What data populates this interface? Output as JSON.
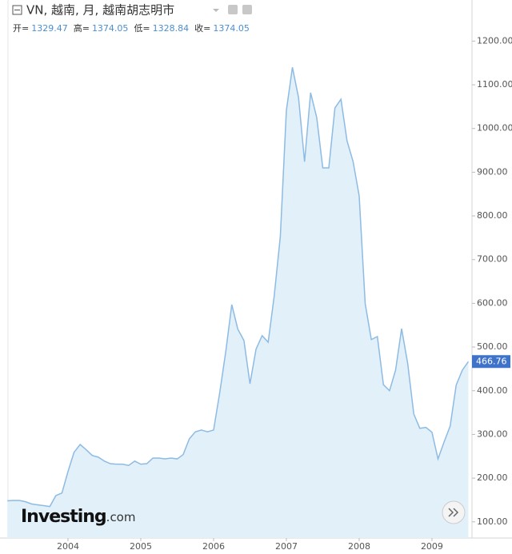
{
  "chart_data": {
    "type": "area",
    "title": "VN, 越南, 月, 越南胡志明市",
    "ohlc": [
      {
        "label": "开=",
        "value": 1329.47
      },
      {
        "label": "高=",
        "value": 1374.05
      },
      {
        "label": "低=",
        "value": 1328.84
      },
      {
        "label": "收=",
        "value": 1374.05
      }
    ],
    "brand": "Investing",
    "brand_suffix": ".com",
    "color": "#8dbbe3",
    "fill": "#e2f0fa",
    "x": [
      2003.167,
      2003.25,
      2003.333,
      2003.417,
      2003.5,
      2003.583,
      2003.667,
      2003.75,
      2003.833,
      2003.917,
      2004,
      2004.083,
      2004.167,
      2004.25,
      2004.333,
      2004.417,
      2004.5,
      2004.583,
      2004.667,
      2004.75,
      2004.833,
      2004.917,
      2005,
      2005.083,
      2005.167,
      2005.25,
      2005.333,
      2005.417,
      2005.5,
      2005.583,
      2005.667,
      2005.75,
      2005.833,
      2005.917,
      2006,
      2006.083,
      2006.167,
      2006.25,
      2006.333,
      2006.417,
      2006.5,
      2006.583,
      2006.667,
      2006.75,
      2006.833,
      2006.917,
      2007,
      2007.083,
      2007.167,
      2007.25,
      2007.333,
      2007.417,
      2007.5,
      2007.583,
      2007.667,
      2007.75,
      2007.833,
      2007.917,
      2008,
      2008.083,
      2008.167,
      2008.25,
      2008.333,
      2008.417,
      2008.5,
      2008.583,
      2008.667,
      2008.75,
      2008.833,
      2008.917,
      2009,
      2009.083,
      2009.167,
      2009.25,
      2009.333,
      2009.417,
      2009.5
    ],
    "values": [
      148,
      149,
      149,
      146,
      141,
      139,
      137,
      135,
      160,
      166,
      215,
      259,
      277,
      265,
      252,
      248,
      239,
      233,
      232,
      232,
      229,
      239,
      232,
      233,
      246,
      246,
      244,
      246,
      244,
      254,
      290,
      306,
      310,
      306,
      310,
      394,
      489,
      597,
      541,
      515,
      416,
      495,
      526,
      511,
      617,
      753,
      1041,
      1140,
      1071,
      924,
      1082,
      1025,
      910,
      910,
      1047,
      1067,
      972,
      924,
      846,
      599,
      517,
      524,
      414,
      400,
      447,
      542,
      462,
      347,
      314,
      316,
      305,
      244,
      283,
      319,
      413,
      447,
      466.76
    ],
    "xlim": [
      2003.176,
      2009.55
    ],
    "xticks": [
      2004,
      2005,
      2006,
      2007,
      2008,
      2009
    ],
    "ylim": [
      63,
      1294
    ],
    "yticks": [
      {
        "value": 100,
        "label": "100.00"
      },
      {
        "value": 200,
        "label": "200.00"
      },
      {
        "value": 300,
        "label": "300.00"
      },
      {
        "value": 400,
        "label": "400.00"
      },
      {
        "value": 500,
        "label": "500.00"
      },
      {
        "value": 600,
        "label": "600.00"
      },
      {
        "value": 700,
        "label": "700.00"
      },
      {
        "value": 800,
        "label": "800.00"
      },
      {
        "value": 900,
        "label": "900.00"
      },
      {
        "value": 1000,
        "label": "1000.00"
      },
      {
        "value": 1100,
        "label": "1100.00"
      },
      {
        "value": 1200,
        "label": "1200.00"
      }
    ]
  }
}
